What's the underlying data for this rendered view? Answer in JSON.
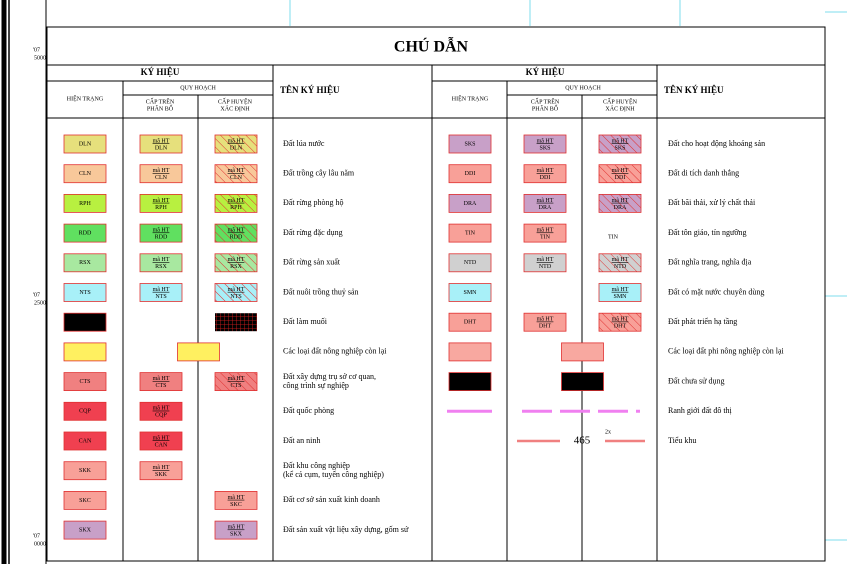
{
  "title": "CHÚ DẪN",
  "margin_labels": [
    {
      "top": "'07",
      "bottom": "5000"
    },
    {
      "top": "'07",
      "bottom": "2500"
    },
    {
      "top": "'07",
      "bottom": "0000"
    }
  ],
  "header": {
    "symbol": "KÝ HIỆU",
    "current": "HIỆN TRẠNG",
    "planned": "QUY HOẠCH",
    "upper": [
      "CẤP TRÊN",
      "PHÂN BỔ"
    ],
    "district": [
      "CẤP HUYỆN",
      "XÁC ĐỊNH"
    ],
    "name": "TÊN KÝ HIỆU"
  },
  "code_prefix": "mã HT",
  "left_rows": [
    {
      "code": "DLN",
      "color": "#e6e07c",
      "upper": true,
      "district": "hatch",
      "name": [
        "Đất lúa nước"
      ]
    },
    {
      "code": "CLN",
      "color": "#f8c89a",
      "upper": true,
      "district": "hatch",
      "name": [
        "Đất trồng cây lâu năm"
      ]
    },
    {
      "code": "RPH",
      "color": "#b8f040",
      "upper": true,
      "district": "hatch",
      "name": [
        "Đất rừng phòng hộ"
      ]
    },
    {
      "code": "RDD",
      "color": "#60e060",
      "upper": true,
      "district": "hatch",
      "name": [
        "Đất rừng đặc dụng"
      ]
    },
    {
      "code": "RSX",
      "color": "#a8e8a0",
      "upper": true,
      "district": "hatch",
      "name": [
        "Đất rừng sản xuất"
      ]
    },
    {
      "code": "NTS",
      "color": "#a8f0f8",
      "upper": true,
      "district": "hatch",
      "name": [
        "Đất nuôi trồng thuỷ sản"
      ]
    },
    {
      "code": null,
      "color": "#000000",
      "upper": false,
      "district": "grid",
      "name": [
        "Đất làm muối"
      ]
    },
    {
      "code": null,
      "color": "#fff060",
      "upper": false,
      "district": "span",
      "name": [
        "Các loại đất nông nghiệp còn lại"
      ]
    },
    {
      "code": "CTS",
      "color": "#f08080",
      "upper": true,
      "district": "hatch",
      "name": [
        "Đất xây dựng trụ sở cơ quan,",
        "công trình sự nghiệp"
      ]
    },
    {
      "code": "CQP",
      "color": "#f04050",
      "upper": true,
      "district": null,
      "name": [
        "Đất quốc phòng"
      ]
    },
    {
      "code": "CAN",
      "color": "#f04050",
      "upper": true,
      "district": null,
      "name": [
        "Đất an ninh"
      ]
    },
    {
      "code": "SKK",
      "color": "#f8a098",
      "upper": true,
      "district": null,
      "name": [
        "Đất khu công nghiệp",
        "(kể cả cụm, tuyến công nghiệp)"
      ]
    },
    {
      "code": "SKC",
      "color": "#f8a098",
      "upper": false,
      "district": "plain",
      "name": [
        "Đất cơ sở sản xuất kinh doanh"
      ]
    },
    {
      "code": "SKX",
      "color": "#c8a0c8",
      "upper": false,
      "district": "plain",
      "name": [
        "Đất sản xuất vật liệu xây dựng, gốm sứ"
      ]
    }
  ],
  "right_rows": [
    {
      "code": "SKS",
      "color": "#c8a0c8",
      "upper": true,
      "district": "hatch",
      "name": [
        "Đất cho hoạt động khoáng sản"
      ]
    },
    {
      "code": "DDI",
      "color": "#f8a098",
      "upper": true,
      "district": "hatch",
      "name": [
        "Đất di tích danh thắng"
      ]
    },
    {
      "code": "DRA",
      "color": "#c8a0c8",
      "upper": true,
      "district": "hatch",
      "name": [
        "Đất bãi thải, xử lý chất thải"
      ]
    },
    {
      "code": "TIN",
      "color": "#f8a098",
      "upper": true,
      "district": "label",
      "name": [
        "Đất tôn giáo, tín ngưỡng"
      ]
    },
    {
      "code": "NTD",
      "color": "#d0d0d0",
      "upper": true,
      "district": "hatch",
      "name": [
        "Đất nghĩa trang, nghĩa địa"
      ]
    },
    {
      "code": "SMN",
      "color": "#a8f0f8",
      "upper": false,
      "district": "plain",
      "name": [
        "Đất có mặt nước chuyên dùng"
      ]
    },
    {
      "code": "DHT",
      "color": "#f8a098",
      "upper": true,
      "district": "hatch",
      "name": [
        "Đất phát triển hạ tầng"
      ]
    },
    {
      "code": null,
      "color": "#f8a8a0",
      "upper": false,
      "district": "span",
      "name": [
        "Các loại đất phi nông nghiệp còn lại"
      ]
    },
    {
      "code": null,
      "color": "#000000",
      "upper": false,
      "district": "span",
      "name": [
        "Đất chưa sử dụng"
      ]
    },
    {
      "line": "boundary",
      "color": "#f080f0",
      "name": [
        "Ranh giới đất đô thị"
      ]
    },
    {
      "line": "subzone",
      "color": "#f08080",
      "label": "465",
      "sup": "2x",
      "name": [
        "Tiểu khu"
      ]
    }
  ]
}
